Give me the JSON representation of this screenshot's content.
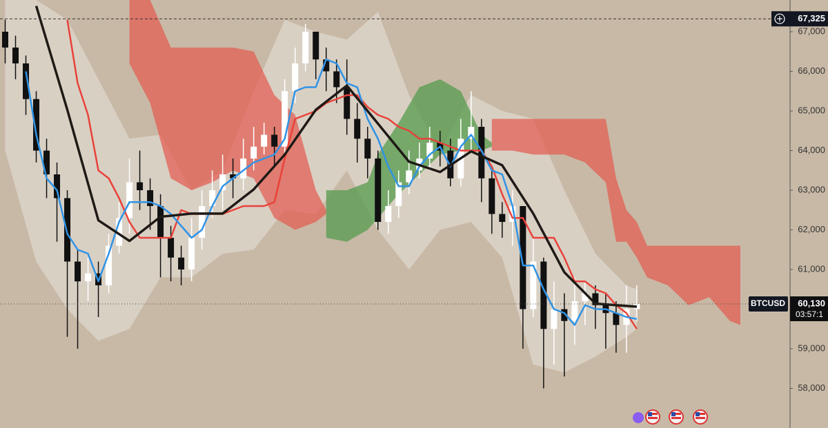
{
  "chart_data": {
    "type": "candlestick",
    "symbol": "BTCUSD",
    "countdown": "03:57:1",
    "crosshair": {
      "value": 67325,
      "label": "67,325"
    },
    "last_price": {
      "value": 60130,
      "label": "60,130"
    },
    "up_color": "#ffffff",
    "down_color": "#111111",
    "xlim": [
      -0.5,
      75.8
    ],
    "ylim": [
      57000,
      67800
    ],
    "yticks": [
      {
        "value": 58000,
        "label": "58,000"
      },
      {
        "value": 59000,
        "label": "59,000"
      },
      {
        "value": 60000,
        "label": "60,000"
      },
      {
        "value": 61000,
        "label": "61,000"
      },
      {
        "value": 62000,
        "label": "62,000"
      },
      {
        "value": 63000,
        "label": "63,000"
      },
      {
        "value": 64000,
        "label": "64,000"
      },
      {
        "value": 65000,
        "label": "65,000"
      },
      {
        "value": 66000,
        "label": "66,000"
      },
      {
        "value": 67000,
        "label": "67,000"
      }
    ],
    "open": [
      67000,
      66600,
      66200,
      65300,
      64000,
      63400,
      62800,
      61200,
      60700,
      60900,
      60600,
      61600,
      62300,
      63200,
      63000,
      62600,
      61800,
      61300,
      61000,
      61800,
      62600,
      63000,
      63400,
      63300,
      63800,
      64100,
      64400,
      64100,
      65500,
      66200,
      67000,
      66300,
      66000,
      65600,
      64800,
      64300,
      63800,
      62200,
      62600,
      63200,
      63500,
      63800,
      64200,
      64000,
      63300,
      64300,
      64600,
      63300,
      62400,
      62200,
      62600,
      60000,
      61200,
      59500,
      60000,
      59700,
      60200,
      60400,
      60100,
      59900,
      59600,
      60000
    ],
    "high": [
      67300,
      66900,
      66400,
      65500,
      64300,
      63700,
      63000,
      61500,
      61300,
      61200,
      61900,
      62700,
      63800,
      64000,
      63300,
      62900,
      62100,
      61600,
      62300,
      63000,
      63500,
      63900,
      63800,
      64300,
      64600,
      64700,
      64600,
      65800,
      66600,
      67200,
      67000,
      66600,
      66300,
      66300,
      65200,
      64600,
      64000,
      63000,
      63500,
      64000,
      64200,
      64600,
      64500,
      64300,
      64800,
      65500,
      64800,
      63500,
      62700,
      63000,
      62600,
      61800,
      61300,
      60700,
      60400,
      60800,
      60700,
      60600,
      60400,
      60200,
      60600,
      60600
    ],
    "low": [
      66200,
      65800,
      64900,
      63700,
      62800,
      61700,
      59300,
      59000,
      60200,
      59800,
      60400,
      61400,
      61900,
      62500,
      62000,
      60800,
      60700,
      60600,
      60700,
      61500,
      62300,
      62500,
      62800,
      63000,
      63500,
      63900,
      63600,
      63900,
      65200,
      66000,
      65800,
      65500,
      65200,
      64400,
      63700,
      63300,
      62000,
      61900,
      62300,
      62900,
      63300,
      63500,
      63600,
      63100,
      63100,
      64000,
      62700,
      61900,
      61800,
      61600,
      59000,
      59800,
      58000,
      58600,
      58300,
      59100,
      59600,
      59500,
      59000,
      58900,
      58900,
      59700
    ],
    "close": [
      66600,
      66200,
      65300,
      64000,
      63400,
      62800,
      61200,
      60700,
      60900,
      60600,
      61600,
      62300,
      63200,
      63000,
      62600,
      61800,
      61300,
      61000,
      61800,
      62600,
      63000,
      63400,
      63300,
      63800,
      64100,
      64400,
      64100,
      65500,
      66200,
      67000,
      66300,
      66000,
      65600,
      64800,
      64300,
      63800,
      62200,
      62600,
      63200,
      63500,
      63800,
      64200,
      64000,
      63300,
      64300,
      64600,
      63300,
      62400,
      62200,
      62600,
      60000,
      61200,
      59500,
      60000,
      59700,
      60200,
      60400,
      60100,
      59900,
      59600,
      60000,
      60130
    ],
    "bands": [
      {
        "color": "rgba(232,228,220,0.55)",
        "x": [
          0,
          3,
          6,
          9,
          12,
          15,
          18,
          21,
          24,
          27,
          30,
          33,
          36,
          39,
          42,
          45,
          48,
          51,
          54,
          57,
          60,
          61
        ],
        "upper": [
          67800,
          67800,
          67300,
          65800,
          64300,
          64400,
          63000,
          63500,
          65500,
          67300,
          67000,
          66800,
          67500,
          65400,
          64000,
          65400,
          65000,
          64800,
          63000,
          61400,
          60600,
          60500
        ],
        "lower": [
          64000,
          61200,
          60000,
          59200,
          59500,
          60800,
          60800,
          61400,
          61500,
          62500,
          62400,
          63500,
          62000,
          61000,
          62000,
          62200,
          61300,
          58600,
          58400,
          58800,
          59300,
          59500
        ]
      },
      {
        "color": "rgba(226,92,80,0.72)",
        "x": [
          12,
          14,
          16,
          18,
          20,
          22,
          24,
          26,
          28,
          30,
          31
        ],
        "upper": [
          67800,
          67800,
          66600,
          66600,
          66600,
          66600,
          66500,
          65400,
          64900,
          63000,
          62500
        ],
        "lower": [
          66200,
          65200,
          63300,
          63000,
          63200,
          63500,
          63300,
          62300,
          62000,
          62200,
          62400
        ]
      },
      {
        "color": "rgba(92,158,84,0.8)",
        "x": [
          31,
          33,
          35,
          36,
          38,
          40,
          42,
          44,
          46,
          47
        ],
        "upper": [
          63000,
          63000,
          63200,
          63900,
          64700,
          65600,
          65800,
          65500,
          64400,
          64200
        ],
        "lower": [
          61800,
          61700,
          62000,
          62300,
          62900,
          63400,
          63900,
          64000,
          64000,
          64100
        ]
      },
      {
        "color": "rgba(226,92,80,0.72)",
        "x": [
          47,
          49,
          51,
          54,
          56,
          58,
          59,
          60,
          61,
          62,
          64,
          66,
          68,
          70,
          71
        ],
        "upper": [
          64800,
          64800,
          64800,
          64800,
          64800,
          64800,
          63300,
          62500,
          62200,
          61600,
          61600,
          61600,
          61600,
          61600,
          61600
        ],
        "lower": [
          64000,
          64000,
          63900,
          63900,
          63700,
          63200,
          61700,
          61700,
          61300,
          60800,
          60600,
          60100,
          60300,
          59700,
          59600
        ]
      }
    ],
    "lines": [
      {
        "color": "#e8423a",
        "width": 2.5,
        "x": [
          6,
          7,
          8,
          9,
          10,
          11,
          12,
          13,
          14,
          15,
          16,
          17,
          18,
          19,
          20,
          21,
          22,
          23,
          24,
          25,
          26,
          27,
          28,
          29,
          30,
          31,
          32,
          33,
          34,
          35,
          36,
          37,
          38,
          39,
          40,
          41,
          42,
          43,
          44,
          45,
          46,
          47,
          48,
          49,
          50,
          51,
          52,
          53,
          54,
          55,
          56,
          57,
          58,
          59,
          60,
          61
        ],
        "values": [
          67300,
          65700,
          64900,
          63500,
          63300,
          62800,
          62200,
          61800,
          61800,
          61800,
          61800,
          62500,
          62400,
          62400,
          62400,
          62400,
          62500,
          62600,
          62600,
          62600,
          62700,
          63800,
          64800,
          64900,
          65000,
          65200,
          65300,
          65400,
          65400,
          65100,
          64900,
          64800,
          64600,
          64500,
          64300,
          64300,
          64200,
          64100,
          64000,
          64000,
          64000,
          63600,
          62900,
          62300,
          62300,
          61800,
          61800,
          61800,
          61300,
          60700,
          60700,
          60500,
          60400,
          60100,
          59900,
          59500
        ]
      },
      {
        "color": "#2f93e6",
        "width": 2.5,
        "x": [
          2,
          3,
          4,
          5,
          6,
          7,
          8,
          9,
          10,
          11,
          12,
          13,
          14,
          15,
          16,
          17,
          18,
          19,
          20,
          21,
          22,
          23,
          24,
          25,
          26,
          27,
          28,
          29,
          30,
          31,
          32,
          33,
          34,
          35,
          36,
          37,
          38,
          39,
          40,
          41,
          42,
          43,
          44,
          45,
          46,
          47,
          48,
          49,
          50,
          51,
          52,
          53,
          54,
          55,
          56,
          57,
          58,
          59,
          60,
          61
        ],
        "values": [
          66000,
          64400,
          63300,
          63000,
          61900,
          61500,
          61400,
          60700,
          61400,
          62200,
          62700,
          62700,
          62700,
          62600,
          62400,
          62100,
          61800,
          62000,
          62600,
          63100,
          63300,
          63500,
          63700,
          63800,
          63900,
          64300,
          65500,
          65600,
          65600,
          66300,
          66200,
          65700,
          65600,
          64800,
          64300,
          63600,
          63100,
          63100,
          63600,
          63900,
          64100,
          63600,
          64100,
          64400,
          64000,
          63500,
          63400,
          62600,
          61100,
          61100,
          60500,
          60000,
          59900,
          59600,
          60100,
          60000,
          60000,
          59900,
          59800,
          59750
        ]
      },
      {
        "color": "#1e1a16",
        "width": 3.5,
        "x": [
          3,
          6,
          9,
          12,
          15,
          18,
          21,
          24,
          27,
          30,
          33,
          36,
          39,
          42,
          45,
          48,
          51,
          54,
          57,
          61
        ],
        "values": [
          67650,
          65030,
          62240,
          61720,
          62330,
          62410,
          62410,
          63020,
          63900,
          65030,
          65640,
          64680,
          63720,
          63460,
          63980,
          63630,
          62410,
          60930,
          60140,
          60060
        ]
      }
    ]
  }
}
